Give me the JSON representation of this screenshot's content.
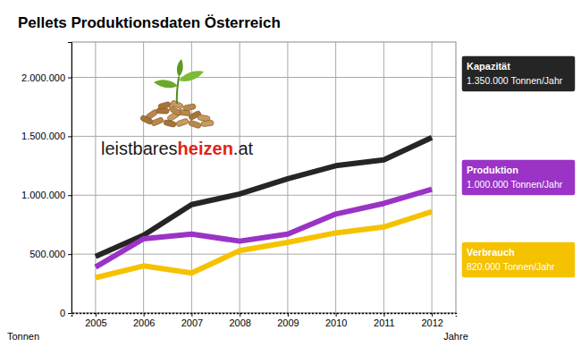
{
  "chart_data": {
    "type": "line",
    "title": "Pellets Produktionsdaten Österreich",
    "x_label": "Jahre",
    "y_label": "Tonnen",
    "x": [
      2005,
      2006,
      2007,
      2008,
      2009,
      2010,
      2011,
      2012
    ],
    "series": [
      {
        "name": "Kapazität",
        "color": "#252525",
        "values": [
          480000,
          660000,
          920000,
          1010000,
          1140000,
          1250000,
          1300000,
          1490000
        ]
      },
      {
        "name": "Produktion",
        "color": "#9a33c6",
        "values": [
          390000,
          630000,
          670000,
          610000,
          670000,
          840000,
          930000,
          1050000
        ]
      },
      {
        "name": "Verbrauch",
        "color": "#f5c200",
        "values": [
          300000,
          400000,
          340000,
          530000,
          600000,
          680000,
          730000,
          860000
        ]
      }
    ],
    "annotations": [
      "1.350.000 Tonnen/Jahr",
      "1.000.000 Tonnen/Jahr",
      "820.000 Tonnen/Jahr"
    ],
    "xlim": [
      2004.5,
      2012.5
    ],
    "ylim": [
      0,
      2300000
    ],
    "xticks": [
      2005,
      2006,
      2007,
      2008,
      2009,
      2010,
      2011,
      2012
    ],
    "yticks": [
      0,
      {
        "value": 500000,
        "label": "500.000"
      },
      {
        "value": 1000000,
        "label": "1.000.000"
      },
      {
        "value": 1500000,
        "label": "1.500.000"
      },
      {
        "value": 2000000,
        "label": "2.000.000"
      }
    ],
    "grid": true
  },
  "logo": {
    "parts": [
      "leistbares",
      "heizen",
      ".at"
    ]
  }
}
